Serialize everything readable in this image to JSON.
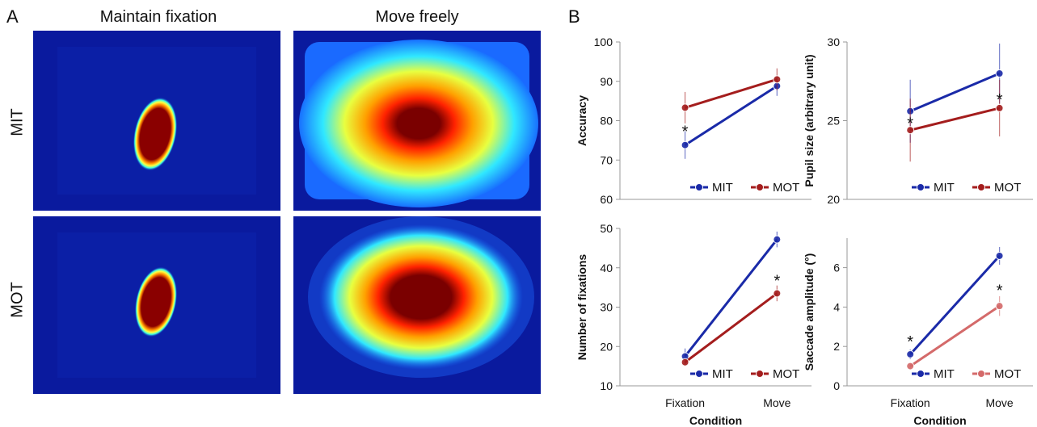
{
  "panel_a": {
    "letter": "A",
    "columns": [
      "Maintain fixation",
      "Move freely"
    ],
    "rows": [
      "MIT",
      "MOT"
    ]
  },
  "panel_b": {
    "letter": "B"
  },
  "colors": {
    "MIT": "#1a2aa8",
    "MOT": "#a41d1d",
    "MOT_light": "#d46a6a",
    "heat_bg": "#0a1a9e"
  },
  "chart_data": [
    {
      "type": "line",
      "ylabel": "Accuracy",
      "xlabel": "",
      "categories": [
        "Fixation",
        "Move"
      ],
      "ylim": [
        60,
        100
      ],
      "yticks": [
        60,
        70,
        80,
        90,
        100
      ],
      "series": [
        {
          "name": "MIT",
          "values": [
            73.8,
            88.8
          ],
          "err": [
            3.5,
            2.5
          ]
        },
        {
          "name": "MOT",
          "values": [
            83.3,
            90.5
          ],
          "err": [
            4.0,
            2.8
          ]
        }
      ],
      "annotations": [
        {
          "text": "*",
          "category": "Fixation",
          "y": 77.5
        }
      ],
      "legend": "bottom-right"
    },
    {
      "type": "line",
      "ylabel": "Pupil size (arbitrary unit)",
      "xlabel": "",
      "categories": [
        "Fixation",
        "Move"
      ],
      "ylim": [
        20,
        30
      ],
      "yticks": [
        20,
        25,
        30
      ],
      "series": [
        {
          "name": "MIT",
          "values": [
            25.6,
            28.0
          ],
          "err": [
            2.0,
            1.9
          ]
        },
        {
          "name": "MOT",
          "values": [
            24.4,
            25.8
          ],
          "err": [
            2.0,
            1.8
          ]
        }
      ],
      "annotations": [
        {
          "text": "*",
          "category": "Fixation",
          "y": 24.9
        },
        {
          "text": "*",
          "category": "Move",
          "y": 26.4
        }
      ],
      "legend": "bottom-right"
    },
    {
      "type": "line",
      "ylabel": "Number of fixations",
      "xlabel": "Condition",
      "categories": [
        "Fixation",
        "Move"
      ],
      "ylim": [
        10,
        50
      ],
      "yticks": [
        10,
        20,
        30,
        40,
        50
      ],
      "series": [
        {
          "name": "MIT",
          "values": [
            17.5,
            47.2
          ],
          "err": [
            2.0,
            2.0
          ]
        },
        {
          "name": "MOT",
          "values": [
            16.0,
            33.5
          ],
          "err": [
            1.0,
            2.0
          ]
        }
      ],
      "annotations": [
        {
          "text": "*",
          "category": "Move",
          "y": 37.0
        }
      ],
      "legend": "bottom-right"
    },
    {
      "type": "line",
      "ylabel": "Saccade amplitude (°)",
      "xlabel": "Condition",
      "categories": [
        "Fixation",
        "Move"
      ],
      "ylim": [
        0,
        7.5
      ],
      "yticks": [
        0,
        2,
        4,
        6
      ],
      "series": [
        {
          "name": "MIT",
          "values": [
            1.6,
            6.6
          ],
          "err": [
            0.25,
            0.45
          ]
        },
        {
          "name": "MOT",
          "values": [
            1.0,
            4.05
          ],
          "err": [
            0.15,
            0.5
          ]
        }
      ],
      "annotations": [
        {
          "text": "*",
          "category": "Fixation",
          "y": 2.3
        },
        {
          "text": "*",
          "category": "Move",
          "y": 4.9
        }
      ],
      "legend": "bottom-right"
    }
  ]
}
